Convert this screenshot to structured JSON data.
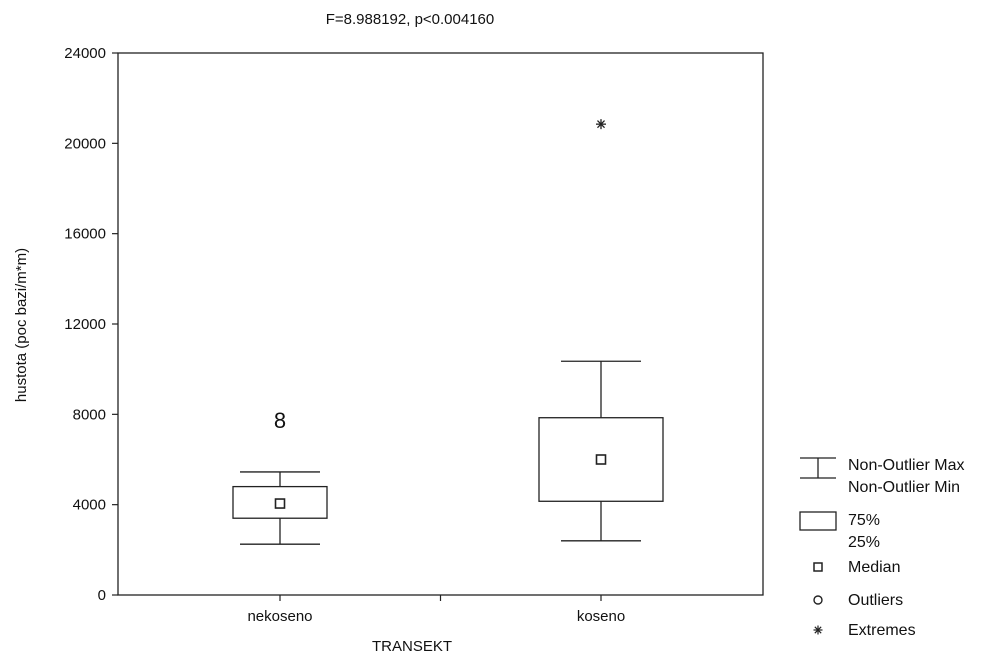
{
  "chart_data": {
    "type": "box",
    "title": "F=8.988192, p<0.004160",
    "xlabel": "TRANSEKT",
    "ylabel": "hustota (poc bazi/m*m)",
    "ylim": [
      0,
      24000
    ],
    "yticks": [
      0,
      4000,
      8000,
      12000,
      16000,
      20000,
      24000
    ],
    "ytick_labels": [
      "0",
      "4000",
      "8000",
      "12000",
      "16000",
      "20000",
      "24000"
    ],
    "categories": [
      "nekoseno",
      "koseno"
    ],
    "boxes": [
      {
        "category": "nekoseno",
        "min": 2250,
        "q1": 3400,
        "median": 4050,
        "q3": 4800,
        "max": 5450,
        "outliers": [
          {
            "value": 7800,
            "marker": "8"
          }
        ],
        "extremes": []
      },
      {
        "category": "koseno",
        "min": 2400,
        "q1": 4150,
        "median": 6000,
        "q3": 7850,
        "max": 10350,
        "outliers": [],
        "extremes": [
          20850
        ]
      }
    ],
    "grid": false,
    "legend": {
      "position": "right",
      "entries": [
        {
          "symbol": "whisker",
          "lines": [
            "Non-Outlier Max",
            "Non-Outlier Min"
          ]
        },
        {
          "symbol": "box",
          "lines": [
            "75%",
            "25%"
          ]
        },
        {
          "symbol": "square",
          "lines": [
            "Median"
          ]
        },
        {
          "symbol": "circle",
          "lines": [
            "Outliers"
          ]
        },
        {
          "symbol": "star",
          "lines": [
            "Extremes"
          ]
        }
      ]
    }
  }
}
